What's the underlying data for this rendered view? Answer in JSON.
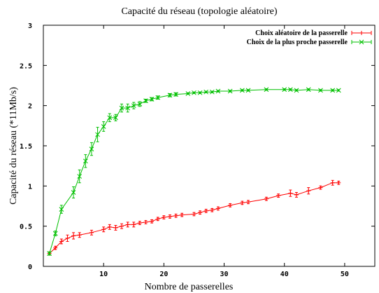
{
  "chart_data": {
    "type": "line",
    "title": "Capacité du réseau (topologie aléatoire)",
    "xlabel": "Nombre de passerelles",
    "ylabel": "Capacité du réseau (*11Mb/s)",
    "xlim": [
      0,
      55
    ],
    "ylim": [
      0,
      3
    ],
    "xticks": [
      10,
      20,
      30,
      40,
      50
    ],
    "xtick_labels": [
      "10",
      "20",
      "30",
      "40",
      "50"
    ],
    "yticks": [
      0,
      0.5,
      1,
      1.5,
      2,
      2.5,
      3
    ],
    "ytick_labels": [
      "0",
      "0.5",
      "1",
      "1.5",
      "2",
      "2.5",
      "3"
    ],
    "legend_position": "top-right",
    "grid": false,
    "series": [
      {
        "name": "Choix aléatoire de la passerelle",
        "color": "#ff0000",
        "marker": "plus",
        "points": [
          {
            "x": 1,
            "y": 0.16,
            "err": 0.02
          },
          {
            "x": 2,
            "y": 0.23,
            "err": 0.02
          },
          {
            "x": 3,
            "y": 0.31,
            "err": 0.03
          },
          {
            "x": 4,
            "y": 0.35,
            "err": 0.04
          },
          {
            "x": 5,
            "y": 0.38,
            "err": 0.04
          },
          {
            "x": 6,
            "y": 0.39,
            "err": 0.03
          },
          {
            "x": 8,
            "y": 0.42,
            "err": 0.03
          },
          {
            "x": 10,
            "y": 0.46,
            "err": 0.03
          },
          {
            "x": 11,
            "y": 0.49,
            "err": 0.03
          },
          {
            "x": 12,
            "y": 0.48,
            "err": 0.03
          },
          {
            "x": 13,
            "y": 0.5,
            "err": 0.03
          },
          {
            "x": 14,
            "y": 0.52,
            "err": 0.03
          },
          {
            "x": 15,
            "y": 0.52,
            "err": 0.03
          },
          {
            "x": 16,
            "y": 0.54,
            "err": 0.02
          },
          {
            "x": 17,
            "y": 0.55,
            "err": 0.02
          },
          {
            "x": 18,
            "y": 0.56,
            "err": 0.02
          },
          {
            "x": 19,
            "y": 0.59,
            "err": 0.02
          },
          {
            "x": 20,
            "y": 0.61,
            "err": 0.02
          },
          {
            "x": 21,
            "y": 0.62,
            "err": 0.02
          },
          {
            "x": 22,
            "y": 0.63,
            "err": 0.02
          },
          {
            "x": 23,
            "y": 0.64,
            "err": 0.02
          },
          {
            "x": 25,
            "y": 0.65,
            "err": 0.02
          },
          {
            "x": 26,
            "y": 0.67,
            "err": 0.02
          },
          {
            "x": 27,
            "y": 0.69,
            "err": 0.02
          },
          {
            "x": 28,
            "y": 0.7,
            "err": 0.02
          },
          {
            "x": 29,
            "y": 0.72,
            "err": 0.02
          },
          {
            "x": 31,
            "y": 0.76,
            "err": 0.02
          },
          {
            "x": 33,
            "y": 0.79,
            "err": 0.02
          },
          {
            "x": 34,
            "y": 0.8,
            "err": 0.02
          },
          {
            "x": 37,
            "y": 0.84,
            "err": 0.02
          },
          {
            "x": 39,
            "y": 0.88,
            "err": 0.02
          },
          {
            "x": 41,
            "y": 0.91,
            "err": 0.04
          },
          {
            "x": 42,
            "y": 0.89,
            "err": 0.03
          },
          {
            "x": 44,
            "y": 0.94,
            "err": 0.04
          },
          {
            "x": 46,
            "y": 0.98,
            "err": 0.02
          },
          {
            "x": 48,
            "y": 1.04,
            "err": 0.03
          },
          {
            "x": 49,
            "y": 1.04,
            "err": 0.02
          }
        ]
      },
      {
        "name": "Choix de la plus proche passerelle",
        "color": "#00c000",
        "marker": "cross",
        "points": [
          {
            "x": 1,
            "y": 0.16,
            "err": 0.02
          },
          {
            "x": 2,
            "y": 0.41,
            "err": 0.03
          },
          {
            "x": 3,
            "y": 0.71,
            "err": 0.05
          },
          {
            "x": 5,
            "y": 0.92,
            "err": 0.07
          },
          {
            "x": 6,
            "y": 1.12,
            "err": 0.08
          },
          {
            "x": 7,
            "y": 1.31,
            "err": 0.08
          },
          {
            "x": 8,
            "y": 1.46,
            "err": 0.08
          },
          {
            "x": 9,
            "y": 1.64,
            "err": 0.09
          },
          {
            "x": 10,
            "y": 1.74,
            "err": 0.06
          },
          {
            "x": 11,
            "y": 1.85,
            "err": 0.05
          },
          {
            "x": 12,
            "y": 1.85,
            "err": 0.04
          },
          {
            "x": 13,
            "y": 1.97,
            "err": 0.05
          },
          {
            "x": 14,
            "y": 1.97,
            "err": 0.05
          },
          {
            "x": 15,
            "y": 2.0,
            "err": 0.04
          },
          {
            "x": 16,
            "y": 2.02,
            "err": 0.03
          },
          {
            "x": 17,
            "y": 2.06,
            "err": 0.02
          },
          {
            "x": 18,
            "y": 2.08,
            "err": 0.02
          },
          {
            "x": 19,
            "y": 2.1,
            "err": 0.02
          },
          {
            "x": 21,
            "y": 2.13,
            "err": 0.02
          },
          {
            "x": 22,
            "y": 2.14,
            "err": 0.02
          },
          {
            "x": 24,
            "y": 2.15,
            "err": 0.01
          },
          {
            "x": 25,
            "y": 2.16,
            "err": 0.01
          },
          {
            "x": 26,
            "y": 2.16,
            "err": 0.01
          },
          {
            "x": 27,
            "y": 2.17,
            "err": 0.01
          },
          {
            "x": 28,
            "y": 2.17,
            "err": 0.01
          },
          {
            "x": 29,
            "y": 2.18,
            "err": 0.01
          },
          {
            "x": 31,
            "y": 2.18,
            "err": 0.01
          },
          {
            "x": 33,
            "y": 2.19,
            "err": 0.01
          },
          {
            "x": 34,
            "y": 2.19,
            "err": 0.01
          },
          {
            "x": 37,
            "y": 2.2,
            "err": 0.01
          },
          {
            "x": 40,
            "y": 2.2,
            "err": 0.01
          },
          {
            "x": 41,
            "y": 2.2,
            "err": 0.01
          },
          {
            "x": 42,
            "y": 2.19,
            "err": 0.01
          },
          {
            "x": 44,
            "y": 2.2,
            "err": 0.01
          },
          {
            "x": 46,
            "y": 2.19,
            "err": 0.01
          },
          {
            "x": 48,
            "y": 2.19,
            "err": 0.01
          },
          {
            "x": 49,
            "y": 2.19,
            "err": 0.01
          }
        ]
      }
    ]
  }
}
